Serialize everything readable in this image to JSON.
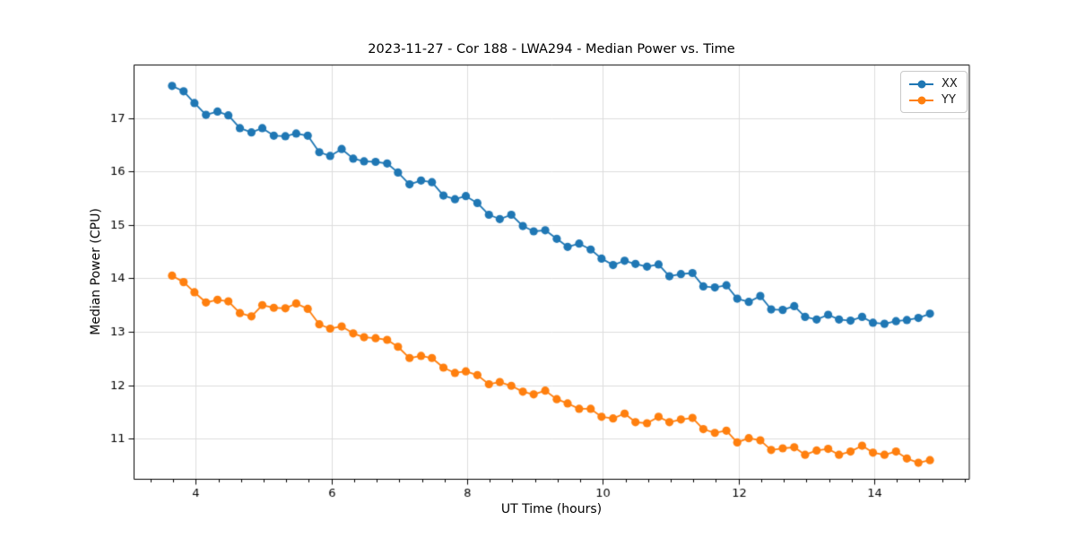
{
  "chart_data": {
    "type": "line",
    "title": "2023-11-27 - Cor 188 - LWA294 - Median Power vs. Time",
    "xlabel": "UT Time (hours)",
    "ylabel": "Median Power (CPU)",
    "xlim": [
      3.09,
      15.4
    ],
    "ylim": [
      10.25,
      18.0
    ],
    "xticks": [
      4,
      6,
      8,
      10,
      12,
      14
    ],
    "yticks": [
      11,
      12,
      13,
      14,
      15,
      16,
      17
    ],
    "x_minor_step": 0.3333,
    "grid": true,
    "legend_position": "upper right",
    "x": [
      3.65,
      3.82,
      3.98,
      4.15,
      4.32,
      4.48,
      4.65,
      4.82,
      4.98,
      5.15,
      5.32,
      5.48,
      5.65,
      5.82,
      5.98,
      6.15,
      6.32,
      6.48,
      6.65,
      6.82,
      6.98,
      7.15,
      7.32,
      7.48,
      7.65,
      7.82,
      7.98,
      8.15,
      8.32,
      8.48,
      8.65,
      8.82,
      8.98,
      9.15,
      9.32,
      9.48,
      9.65,
      9.82,
      9.98,
      10.15,
      10.32,
      10.48,
      10.65,
      10.82,
      10.98,
      11.15,
      11.32,
      11.48,
      11.65,
      11.82,
      11.98,
      12.15,
      12.32,
      12.48,
      12.65,
      12.82,
      12.98,
      13.15,
      13.32,
      13.48,
      13.65,
      13.82,
      13.98,
      14.15,
      14.32,
      14.48,
      14.65,
      14.82
    ],
    "series": [
      {
        "name": "XX",
        "color": "#1f77b4",
        "marker": "o",
        "values": [
          17.6,
          17.5,
          17.28,
          17.06,
          17.12,
          17.05,
          16.81,
          16.73,
          16.81,
          16.67,
          16.66,
          16.71,
          16.67,
          16.36,
          16.29,
          16.42,
          16.24,
          16.19,
          16.18,
          16.15,
          15.98,
          15.76,
          15.83,
          15.8,
          15.55,
          15.48,
          15.54,
          15.41,
          15.19,
          15.11,
          15.19,
          14.98,
          14.88,
          14.9,
          14.74,
          14.59,
          14.65,
          14.54,
          14.37,
          14.25,
          14.33,
          14.27,
          14.22,
          14.26,
          14.04,
          14.08,
          14.1,
          13.85,
          13.83,
          13.87,
          13.62,
          13.56,
          13.67,
          13.42,
          13.41,
          13.48,
          13.28,
          13.23,
          13.32,
          13.23,
          13.21,
          13.28,
          13.17,
          13.15,
          13.2,
          13.22,
          13.26,
          13.34
        ]
      },
      {
        "name": "YY",
        "color": "#ff7f0e",
        "marker": "o",
        "values": [
          14.05,
          13.93,
          13.74,
          13.55,
          13.6,
          13.57,
          13.35,
          13.29,
          13.5,
          13.45,
          13.44,
          13.53,
          13.43,
          13.14,
          13.06,
          13.1,
          12.97,
          12.9,
          12.88,
          12.85,
          12.72,
          12.51,
          12.55,
          12.51,
          12.33,
          12.23,
          12.26,
          12.19,
          12.02,
          12.06,
          11.99,
          11.88,
          11.83,
          11.9,
          11.74,
          11.66,
          11.56,
          11.56,
          11.41,
          11.38,
          11.47,
          11.31,
          11.29,
          11.41,
          11.31,
          11.36,
          11.39,
          11.18,
          11.11,
          11.15,
          10.93,
          11.01,
          10.97,
          10.79,
          10.82,
          10.84,
          10.7,
          10.78,
          10.81,
          10.7,
          10.76,
          10.87,
          10.74,
          10.7,
          10.76,
          10.63,
          10.55,
          10.6
        ]
      }
    ]
  },
  "colors": {
    "grid": "#dddddd",
    "spine": "#000000",
    "tick_text": "#000000",
    "legend_border": "#c9c9c9"
  }
}
